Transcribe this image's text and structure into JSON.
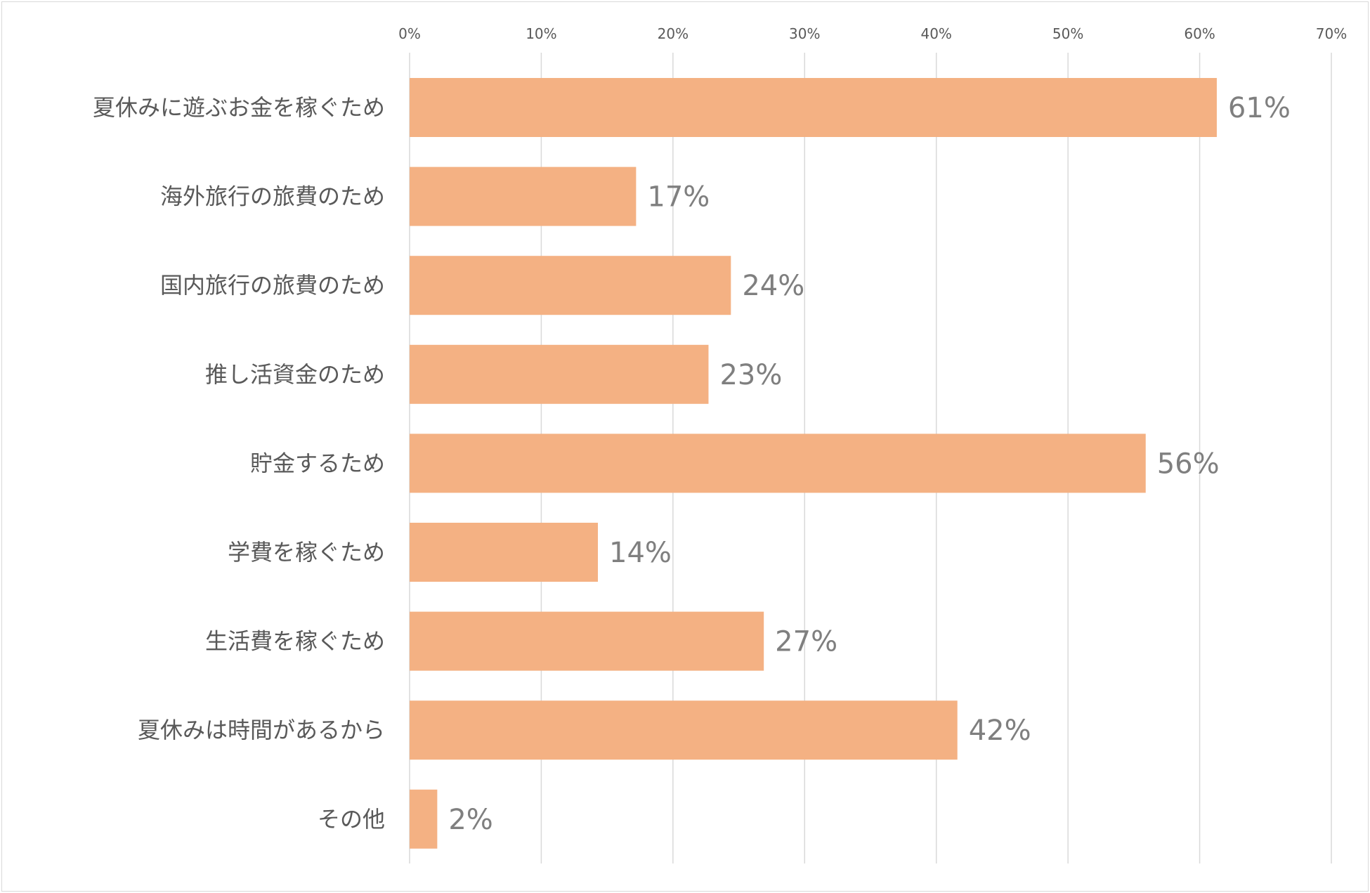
{
  "chart_data": {
    "type": "bar",
    "orientation": "horizontal",
    "categories": [
      "夏休みに遊ぶお金を稼ぐため",
      "海外旅行の旅費のため",
      "国内旅行の旅費のため",
      "推し活資金のため",
      "貯金するため",
      "学費を稼ぐため",
      "生活費を稼ぐため",
      "夏休みは時間があるから",
      "その他"
    ],
    "values": [
      61.3,
      17.2,
      24.4,
      22.7,
      55.9,
      14.3,
      26.9,
      41.6,
      2.1
    ],
    "data_labels": [
      "61%",
      "17%",
      "24%",
      "23%",
      "56%",
      "14%",
      "27%",
      "42%",
      "2%"
    ],
    "x_ticks": [
      "0%",
      "10%",
      "20%",
      "30%",
      "40%",
      "50%",
      "60%",
      "70%"
    ],
    "xlim": [
      0,
      70
    ],
    "x_axis_position": "top",
    "grid": true,
    "legend": "none",
    "title": "",
    "xlabel": "",
    "ylabel": "",
    "colors": {
      "bar": "#f4b183",
      "grid": "#d9d9d9",
      "text": "#595959",
      "label": "#7f7f7f"
    }
  }
}
